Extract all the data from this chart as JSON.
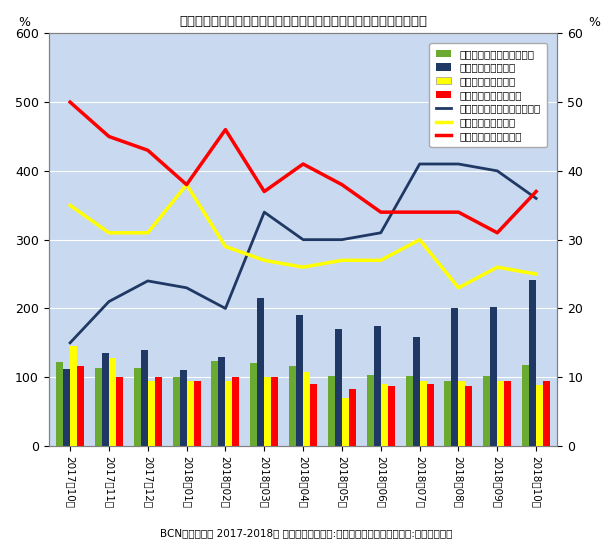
{
  "title": "フルサイズレンズ交換型デジカメの販売台数前年比とメーカーシェア",
  "subtitle": "BCNランキング 2017-2018年 月次（台数前年比:時系列パネル／台数シェア:最大パネル）",
  "categories": [
    "2017年10月",
    "2017年11月",
    "2017年12月",
    "2018年01月",
    "2018年02月",
    "2018年03月",
    "2018年04月",
    "2018年05月",
    "2018年06月",
    "2018年07月",
    "2018年08月",
    "2018年09月",
    "2018年10月"
  ],
  "bar_total": [
    122,
    113,
    113,
    100,
    123,
    120,
    116,
    102,
    103,
    102,
    95,
    102,
    118
  ],
  "bar_sony": [
    112,
    135,
    140,
    110,
    130,
    215,
    190,
    170,
    175,
    158,
    200,
    202,
    242
  ],
  "bar_nikon": [
    145,
    128,
    95,
    95,
    95,
    100,
    108,
    70,
    90,
    95,
    95,
    95,
    88
  ],
  "bar_canon": [
    116,
    100,
    100,
    95,
    100,
    100,
    90,
    83,
    87,
    90,
    87,
    95,
    95
  ],
  "line_sony_share": [
    15,
    21,
    24,
    23,
    20,
    34,
    30,
    30,
    31,
    41,
    41,
    40,
    36
  ],
  "line_nikon_share": [
    35,
    31,
    31,
    38,
    29,
    27,
    26,
    27,
    27,
    30,
    23,
    26,
    25
  ],
  "line_canon_share": [
    50,
    45,
    43,
    38,
    46,
    37,
    41,
    38,
    34,
    34,
    34,
    31,
    37
  ],
  "bar_total_color": "#6aaa30",
  "bar_sony_color": "#1f3864",
  "bar_nikon_color": "#ffff00",
  "bar_canon_color": "#ff0000",
  "line_sony_color": "#1f3864",
  "line_nikon_color": "#ffff00",
  "line_canon_color": "#ff0000",
  "ylim_left": [
    0,
    600
  ],
  "ylim_right": [
    0,
    60
  ],
  "yticks_left": [
    0,
    100,
    200,
    300,
    400,
    500,
    600
  ],
  "yticks_right": [
    0,
    10,
    20,
    30,
    40,
    50,
    60
  ],
  "ylabel_left": "%",
  "ylabel_right": "%",
  "background_color": "#c9d9f0",
  "legend_entries": [
    "台数前年比（左軸）・全体",
    "台数前年比・ソニー",
    "台数前年比・ニコン",
    "台数前年比・キヤノン",
    "台数シェア（右軸）・ソニー",
    "台数シェア・ニコン",
    "台数シェア・キヤノン"
  ]
}
